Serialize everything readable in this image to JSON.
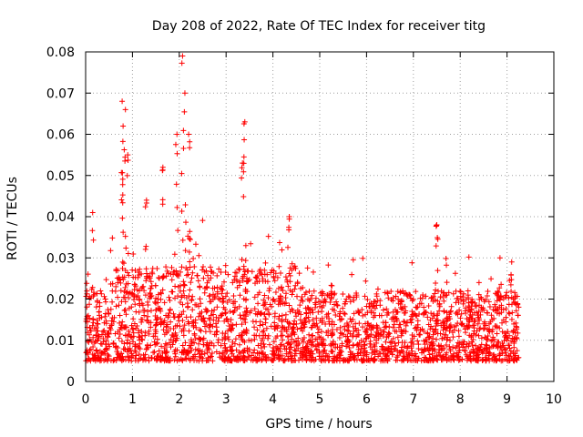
{
  "chart_data": {
    "type": "scatter",
    "title": "Day 208 of 2022, Rate Of TEC Index for receiver titg",
    "xlabel": "GPS time / hours",
    "ylabel": "ROTI / TECUs",
    "xlim": [
      0,
      10
    ],
    "ylim": [
      0,
      0.08
    ],
    "xticks": [
      0,
      1,
      2,
      3,
      4,
      5,
      6,
      7,
      8,
      9,
      10
    ],
    "yticks": [
      0,
      0.01,
      0.02,
      0.03,
      0.04,
      0.05,
      0.06,
      0.07,
      0.08
    ],
    "xtick_labels": [
      "0",
      "1",
      "2",
      "3",
      "4",
      "5",
      "6",
      "7",
      "8",
      "9",
      "10"
    ],
    "ytick_labels": [
      "0",
      "0.01",
      "0.02",
      "0.03",
      "0.04",
      "0.05",
      "0.06",
      "0.07",
      "0.08"
    ],
    "grid": true,
    "marker": "+",
    "color": "#ff0000",
    "series": [
      {
        "name": "ROTI",
        "x_range": [
          0.0,
          9.25
        ],
        "typical_band": [
          0.005,
          0.022
        ],
        "peaks": [
          {
            "x": 0.15,
            "y": 0.041
          },
          {
            "x": 0.78,
            "y": 0.068
          },
          {
            "x": 0.8,
            "y": 0.062
          },
          {
            "x": 0.85,
            "y": 0.066
          },
          {
            "x": 0.9,
            "y": 0.055
          },
          {
            "x": 1.3,
            "y": 0.044
          },
          {
            "x": 1.65,
            "y": 0.052
          },
          {
            "x": 1.95,
            "y": 0.06
          },
          {
            "x": 2.07,
            "y": 0.079
          },
          {
            "x": 2.12,
            "y": 0.07
          },
          {
            "x": 2.2,
            "y": 0.06
          },
          {
            "x": 3.4,
            "y": 0.063
          },
          {
            "x": 3.35,
            "y": 0.053
          },
          {
            "x": 4.35,
            "y": 0.04
          },
          {
            "x": 7.5,
            "y": 0.038
          },
          {
            "x": 8.85,
            "y": 0.03
          },
          {
            "x": 9.1,
            "y": 0.029
          }
        ]
      }
    ]
  }
}
